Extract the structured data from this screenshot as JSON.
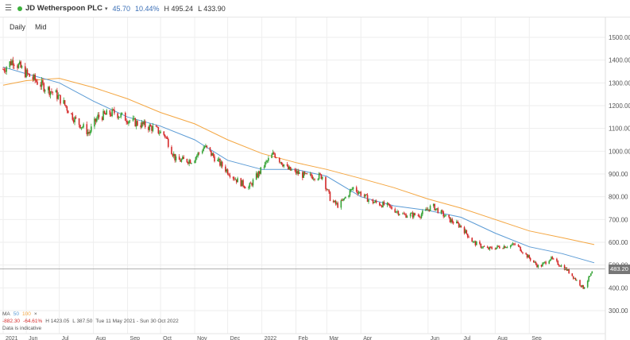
{
  "header": {
    "menu_icon": "hamburger-icon",
    "status_color": "#3db13d",
    "instrument": "JD Wetherspoon PLC",
    "caret": "▾",
    "change": "45.70",
    "change_pct": "10.44%",
    "high": "H 495.24",
    "low": "L 433.90",
    "change_color": "#3b6fb6"
  },
  "toolbar": {
    "interval": "Daily",
    "price_type": "Mid"
  },
  "legend": {
    "ma_label": "MA",
    "ma1": "50",
    "ma2": "100",
    "ma1_color": "#5b9bd5",
    "ma2_color": "#f4a641",
    "perf_abs": "-882.30",
    "perf_pct": "-64.61%",
    "hi": "H 1423.05",
    "lo": "L 387.50",
    "range": "Tue 11 May 2021 - Sun 30 Oct 2022",
    "delay_note": "Data is indicative"
  },
  "price_tag": "483.20",
  "colors": {
    "up": "#35a335",
    "down": "#d52b2b",
    "grid": "#eeeeee",
    "last_line": "#999999"
  },
  "chart_data": {
    "type": "candlestick",
    "y_ticks": [
      "1500.00",
      "1400.00",
      "1300.00",
      "1200.00",
      "1100.00",
      "1000.00",
      "900.00",
      "800.00",
      "700.00",
      "600.00",
      "500.00",
      "400.00",
      "300.00"
    ],
    "ylim": [
      300,
      1500
    ],
    "x_labels": [
      {
        "label": "2021",
        "date": "2021-05-11"
      },
      {
        "label": "Jun",
        "date": "2021-06-01"
      },
      {
        "label": "Jul",
        "date": "2021-07-01"
      },
      {
        "label": "Aug",
        "date": "2021-08-01"
      },
      {
        "label": "Sep",
        "date": "2021-09-01"
      },
      {
        "label": "Oct",
        "date": "2021-10-01"
      },
      {
        "label": "Nov",
        "date": "2021-11-01"
      },
      {
        "label": "Dec",
        "date": "2021-12-01"
      },
      {
        "label": "2022",
        "date": "2022-01-01"
      },
      {
        "label": "Feb",
        "date": "2022-02-01"
      },
      {
        "label": "Mar",
        "date": "2022-03-01"
      },
      {
        "label": "Apr",
        "date": "2022-04-01"
      },
      {
        "label": "Jun",
        "date": "2022-06-01"
      },
      {
        "label": "Jul",
        "date": "2022-07-01"
      },
      {
        "label": "Aug",
        "date": "2022-08-01"
      },
      {
        "label": "Sep",
        "date": "2022-09-01"
      }
    ],
    "x_range": [
      "2021-05-11",
      "2022-10-30"
    ],
    "last_price": 483.2,
    "trend_points": [
      {
        "date": "2021-05-11",
        "price": 1360
      },
      {
        "date": "2021-05-20",
        "price": 1400
      },
      {
        "date": "2021-06-01",
        "price": 1340
      },
      {
        "date": "2021-06-15",
        "price": 1290
      },
      {
        "date": "2021-06-28",
        "price": 1250
      },
      {
        "date": "2021-07-05",
        "price": 1210
      },
      {
        "date": "2021-07-15",
        "price": 1140
      },
      {
        "date": "2021-07-28",
        "price": 1080
      },
      {
        "date": "2021-08-05",
        "price": 1150
      },
      {
        "date": "2021-08-20",
        "price": 1170
      },
      {
        "date": "2021-09-05",
        "price": 1130
      },
      {
        "date": "2021-09-25",
        "price": 1100
      },
      {
        "date": "2021-10-05",
        "price": 1070
      },
      {
        "date": "2021-10-15",
        "price": 960
      },
      {
        "date": "2021-10-30",
        "price": 960
      },
      {
        "date": "2021-11-10",
        "price": 1020
      },
      {
        "date": "2021-11-25",
        "price": 940
      },
      {
        "date": "2021-12-10",
        "price": 870
      },
      {
        "date": "2021-12-20",
        "price": 840
      },
      {
        "date": "2022-01-05",
        "price": 950
      },
      {
        "date": "2022-01-12",
        "price": 990
      },
      {
        "date": "2022-01-25",
        "price": 920
      },
      {
        "date": "2022-02-10",
        "price": 890
      },
      {
        "date": "2022-02-25",
        "price": 890
      },
      {
        "date": "2022-03-05",
        "price": 780
      },
      {
        "date": "2022-03-12",
        "price": 760
      },
      {
        "date": "2022-03-25",
        "price": 840
      },
      {
        "date": "2022-04-10",
        "price": 780
      },
      {
        "date": "2022-04-25",
        "price": 760
      },
      {
        "date": "2022-05-10",
        "price": 720
      },
      {
        "date": "2022-05-25",
        "price": 720
      },
      {
        "date": "2022-06-05",
        "price": 760
      },
      {
        "date": "2022-06-20",
        "price": 700
      },
      {
        "date": "2022-07-01",
        "price": 670
      },
      {
        "date": "2022-07-12",
        "price": 600
      },
      {
        "date": "2022-07-25",
        "price": 570
      },
      {
        "date": "2022-08-05",
        "price": 580
      },
      {
        "date": "2022-08-20",
        "price": 590
      },
      {
        "date": "2022-08-30",
        "price": 540
      },
      {
        "date": "2022-09-10",
        "price": 490
      },
      {
        "date": "2022-09-20",
        "price": 530
      },
      {
        "date": "2022-10-05",
        "price": 480
      },
      {
        "date": "2022-10-20",
        "price": 400
      },
      {
        "date": "2022-10-30",
        "price": 483
      }
    ],
    "ma50_points": [
      {
        "date": "2021-05-11",
        "price": 1370
      },
      {
        "date": "2021-06-01",
        "price": 1340
      },
      {
        "date": "2021-07-01",
        "price": 1300
      },
      {
        "date": "2021-08-01",
        "price": 1220
      },
      {
        "date": "2021-09-01",
        "price": 1150
      },
      {
        "date": "2021-10-01",
        "price": 1110
      },
      {
        "date": "2021-11-01",
        "price": 1050
      },
      {
        "date": "2021-12-01",
        "price": 960
      },
      {
        "date": "2022-01-01",
        "price": 920
      },
      {
        "date": "2022-02-01",
        "price": 920
      },
      {
        "date": "2022-03-01",
        "price": 890
      },
      {
        "date": "2022-04-01",
        "price": 800
      },
      {
        "date": "2022-05-01",
        "price": 760
      },
      {
        "date": "2022-06-01",
        "price": 740
      },
      {
        "date": "2022-07-01",
        "price": 710
      },
      {
        "date": "2022-08-01",
        "price": 640
      },
      {
        "date": "2022-09-01",
        "price": 580
      },
      {
        "date": "2022-10-01",
        "price": 550
      },
      {
        "date": "2022-10-30",
        "price": 510
      }
    ],
    "ma100_points": [
      {
        "date": "2021-05-11",
        "price": 1290
      },
      {
        "date": "2021-06-01",
        "price": 1310
      },
      {
        "date": "2021-07-01",
        "price": 1320
      },
      {
        "date": "2021-08-01",
        "price": 1280
      },
      {
        "date": "2021-09-01",
        "price": 1230
      },
      {
        "date": "2021-10-01",
        "price": 1170
      },
      {
        "date": "2021-11-01",
        "price": 1120
      },
      {
        "date": "2021-12-01",
        "price": 1050
      },
      {
        "date": "2022-01-01",
        "price": 990
      },
      {
        "date": "2022-02-01",
        "price": 950
      },
      {
        "date": "2022-03-01",
        "price": 920
      },
      {
        "date": "2022-04-01",
        "price": 880
      },
      {
        "date": "2022-05-01",
        "price": 840
      },
      {
        "date": "2022-06-01",
        "price": 790
      },
      {
        "date": "2022-07-01",
        "price": 750
      },
      {
        "date": "2022-08-01",
        "price": 700
      },
      {
        "date": "2022-09-01",
        "price": 650
      },
      {
        "date": "2022-10-01",
        "price": 620
      },
      {
        "date": "2022-10-30",
        "price": 590
      }
    ]
  }
}
